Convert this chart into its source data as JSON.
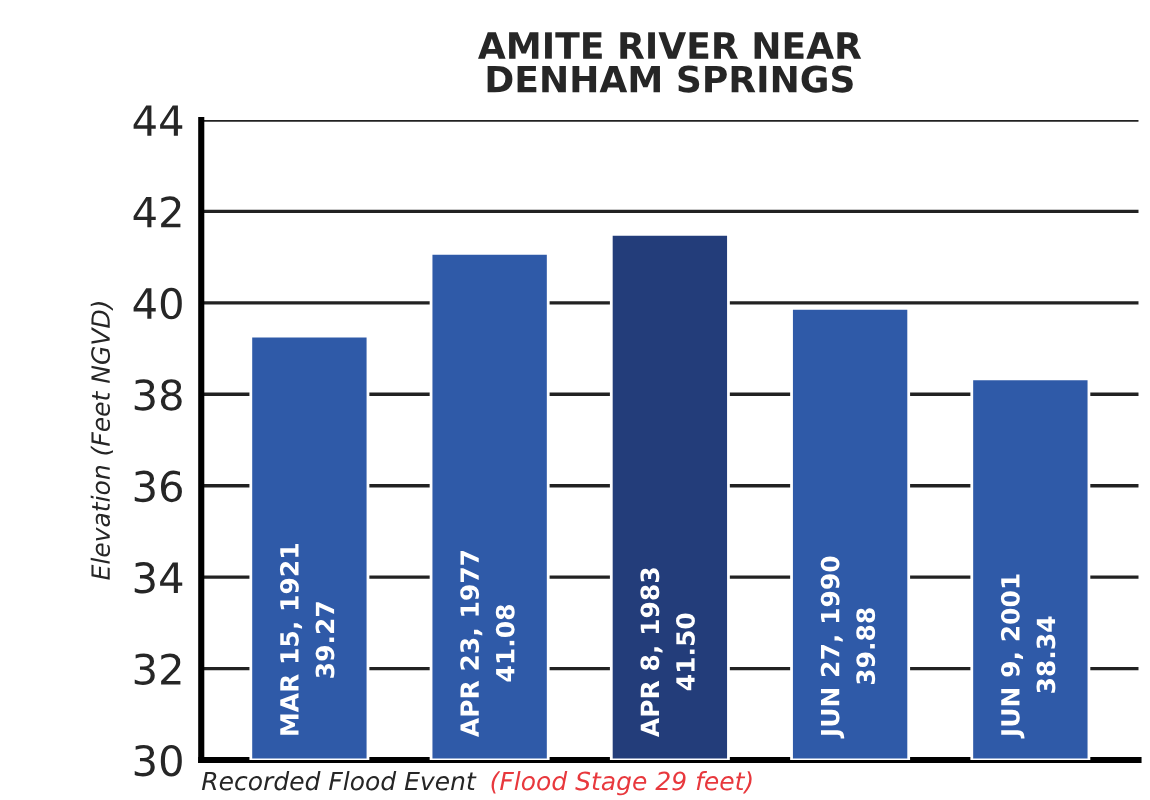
{
  "chart_data": {
    "type": "bar",
    "title": "AMITE RIVER NEAR\nDENHAM SPRINGS",
    "xlabel": "Recorded Flood Event",
    "ylabel": "Elevation (Feet NGVD)",
    "annotations": [
      "(Flood Stage 29 feet)"
    ],
    "categories": [
      "MAR 15, 1921",
      "APR 23, 1977",
      "APR 8, 1983",
      "JUN 27, 1990",
      "JUN 9, 2001"
    ],
    "values": [
      39.27,
      41.08,
      41.5,
      39.88,
      38.34
    ],
    "value_labels": [
      "39.27",
      "41.08",
      "41.50",
      "39.88",
      "38.34"
    ],
    "colors": [
      "#2f5aa8",
      "#2f5aa8",
      "#233d7a",
      "#2f5aa8",
      "#2f5aa8"
    ],
    "ylim": [
      30,
      44
    ],
    "yticks": [
      30,
      32,
      34,
      36,
      38,
      40,
      42,
      44
    ],
    "grid": "y"
  }
}
